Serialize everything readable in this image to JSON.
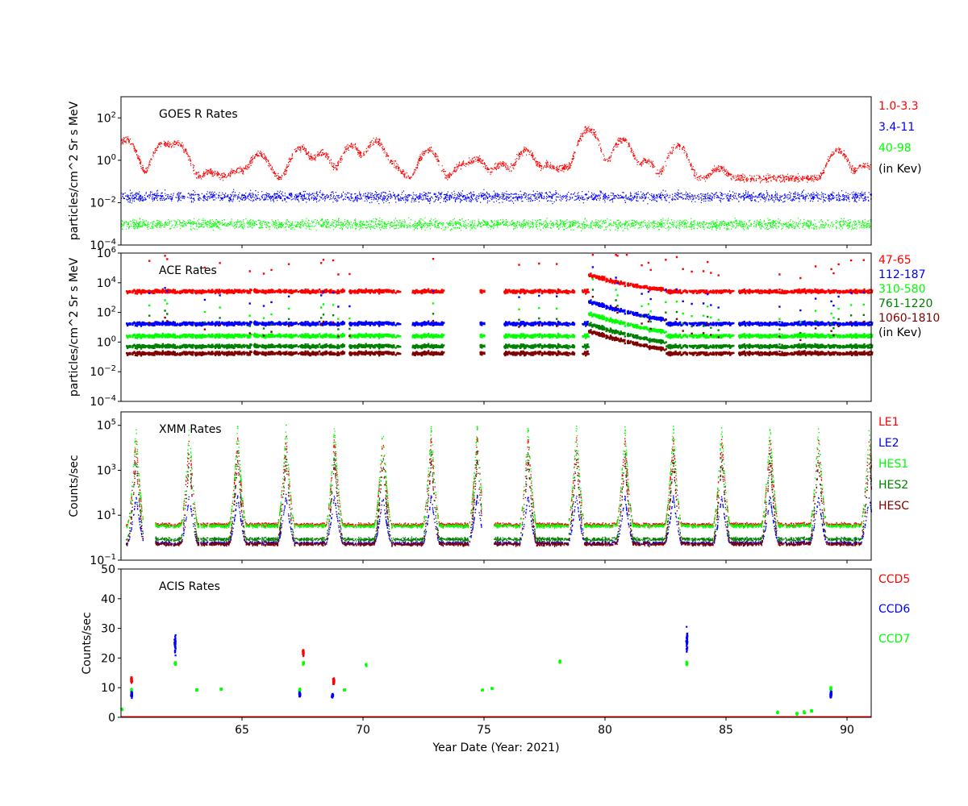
{
  "figure": {
    "xlabel": "Year Date (Year: 2021)",
    "x_range": [
      60.0,
      91.0
    ],
    "x_ticks": [
      65,
      70,
      75,
      80,
      85,
      90
    ]
  },
  "chart_data": [
    {
      "type": "scatter",
      "title": "GOES R Rates",
      "ylabel": "particles/cm^2 Sr s MeV",
      "yscale": "log",
      "ylim_exp": [
        -4,
        3
      ],
      "yticks_exp": [
        -4,
        -2,
        0,
        2
      ],
      "legend": [
        {
          "label": "1.0-3.3",
          "color": "#ff0000"
        },
        {
          "label": "3.4-11",
          "color": "#0000ff"
        },
        {
          "label": "40-98",
          "color": "#00ff00"
        },
        {
          "label": "(in Kev)",
          "color": "#000000"
        }
      ],
      "series": [
        {
          "color": "#ff0000",
          "baseline": 0.15,
          "peaks": [
            [
              60.2,
              10
            ],
            [
              61.7,
              6
            ],
            [
              62.3,
              5
            ],
            [
              62.5,
              1
            ],
            [
              63.7,
              0.15
            ],
            [
              64.8,
              0.2
            ],
            [
              65.7,
              2
            ],
            [
              67.4,
              4
            ],
            [
              68.3,
              2
            ],
            [
              69.5,
              5
            ],
            [
              70.5,
              8
            ],
            [
              71.2,
              0.5
            ],
            [
              72.7,
              3
            ],
            [
              74.1,
              0.5
            ],
            [
              74.7,
              1
            ],
            [
              75.7,
              0.5
            ],
            [
              76.7,
              3
            ],
            [
              77.6,
              0.5
            ],
            [
              78.3,
              0.3
            ],
            [
              79.3,
              30
            ],
            [
              80.7,
              10
            ],
            [
              81.7,
              0.8
            ],
            [
              83.0,
              5
            ],
            [
              84.7,
              0.3
            ],
            [
              89.6,
              3
            ],
            [
              90.7,
              0.5
            ]
          ]
        },
        {
          "color": "#0000ff",
          "baseline": 0.02
        },
        {
          "color": "#00ff00",
          "baseline": 0.001
        }
      ]
    },
    {
      "type": "scatter",
      "title": "ACE Rates",
      "ylabel": "particles/cm^2 Sr s MeV",
      "yscale": "log",
      "ylim_exp": [
        -4,
        6
      ],
      "yticks_exp": [
        -4,
        -2,
        0,
        2,
        4,
        6
      ],
      "legend": [
        {
          "label": "47-65",
          "color": "#ff0000"
        },
        {
          "label": "112-187",
          "color": "#0000ff"
        },
        {
          "label": "310-580",
          "color": "#00ff00"
        },
        {
          "label": "761-1220",
          "color": "#008000"
        },
        {
          "label": "1060-1810",
          "color": "#800000"
        },
        {
          "label": "(in Kev)",
          "color": "#000000"
        }
      ],
      "gaps": [
        [
          69.2,
          69.4
        ],
        [
          71.5,
          72.0
        ],
        [
          73.3,
          74.8
        ],
        [
          75.0,
          75.8
        ],
        [
          78.7,
          79.0
        ],
        [
          85.3,
          85.5
        ]
      ],
      "storm": {
        "start": 79.3,
        "peak_factor": 30
      },
      "series": [
        {
          "color": "#ff0000",
          "baseline": 3000
        },
        {
          "color": "#0000ff",
          "baseline": 20
        },
        {
          "color": "#00ff00",
          "baseline": 3
        },
        {
          "color": "#008000",
          "baseline": 0.6
        },
        {
          "color": "#800000",
          "baseline": 0.2
        }
      ]
    },
    {
      "type": "scatter",
      "title": "XMM Rates",
      "ylabel": "Counts/sec",
      "yscale": "log",
      "ylim_exp": [
        -1,
        5.6
      ],
      "ytick_labels": [
        "10^-1",
        "10^1",
        "10^3",
        "10^5"
      ],
      "yticks_exp": [
        -1,
        1,
        3,
        5
      ],
      "legend": [
        {
          "label": "LE1",
          "color": "#ff0000"
        },
        {
          "label": "LE2",
          "color": "#0000ff"
        },
        {
          "label": "HES1",
          "color": "#00ff00"
        },
        {
          "label": "HES2",
          "color": "#008000"
        },
        {
          "label": "HESC",
          "color": "#800000"
        }
      ],
      "gaps": [
        [
          60.9,
          61.4
        ],
        [
          74.9,
          75.4
        ]
      ],
      "perigees": [
        60.6,
        62.8,
        64.8,
        66.8,
        68.8,
        70.8,
        72.8,
        74.7,
        76.8,
        78.8,
        80.8,
        82.8,
        84.8,
        86.8,
        88.8,
        90.9
      ],
      "series": [
        {
          "color": "#ff0000",
          "baseline": 4,
          "peak": 30000
        },
        {
          "color": "#0000ff",
          "baseline": 0.6,
          "peak": 80
        },
        {
          "color": "#00ff00",
          "baseline": 3.5,
          "peak": 100000
        },
        {
          "color": "#008000",
          "baseline": 0.9,
          "peak": 8000
        },
        {
          "color": "#800000",
          "baseline": 0.55,
          "peak": 3000
        }
      ]
    },
    {
      "type": "scatter",
      "title": "ACIS Rates",
      "ylabel": "Counts/sec",
      "yscale": "linear",
      "ylim": [
        0,
        50
      ],
      "yticks": [
        0,
        10,
        20,
        30,
        40,
        50
      ],
      "legend": [
        {
          "label": "CCD5",
          "color": "#ff0000"
        },
        {
          "label": "CCD6",
          "color": "#0000ff"
        },
        {
          "label": "CCD7",
          "color": "#00ff00"
        }
      ],
      "clusters": [
        {
          "x": 60.0,
          "color": "#00ff00",
          "y": 3,
          "spread": 0.5
        },
        {
          "x": 60.4,
          "color": "#ff0000",
          "y": 13,
          "spread": 1.5
        },
        {
          "x": 60.4,
          "color": "#00ff00",
          "y": 9.5,
          "spread": 0.8
        },
        {
          "x": 60.4,
          "color": "#0000ff",
          "y": 8,
          "spread": 1.5
        },
        {
          "x": 62.2,
          "color": "#0000ff",
          "y": 25,
          "spread": 5
        },
        {
          "x": 62.2,
          "color": "#00ff00",
          "y": 18.5,
          "spread": 0.8
        },
        {
          "x": 63.1,
          "color": "#00ff00",
          "y": 9.5,
          "spread": 0.4
        },
        {
          "x": 64.1,
          "color": "#00ff00",
          "y": 9.8,
          "spread": 0.4
        },
        {
          "x": 67.5,
          "color": "#ff0000",
          "y": 22,
          "spread": 1.5
        },
        {
          "x": 67.5,
          "color": "#00ff00",
          "y": 18.5,
          "spread": 0.6
        },
        {
          "x": 67.35,
          "color": "#00ff00",
          "y": 9.5,
          "spread": 0.8
        },
        {
          "x": 67.35,
          "color": "#0000ff",
          "y": 8,
          "spread": 1.2
        },
        {
          "x": 68.75,
          "color": "#ff0000",
          "y": 12.5,
          "spread": 1.5
        },
        {
          "x": 68.7,
          "color": "#0000ff",
          "y": 7.5,
          "spread": 1.0
        },
        {
          "x": 69.2,
          "color": "#00ff00",
          "y": 9.5,
          "spread": 0.4
        },
        {
          "x": 70.1,
          "color": "#00ff00",
          "y": 18,
          "spread": 0.6
        },
        {
          "x": 74.9,
          "color": "#00ff00",
          "y": 9.5,
          "spread": 0.3
        },
        {
          "x": 75.3,
          "color": "#00ff00",
          "y": 10,
          "spread": 0.4
        },
        {
          "x": 78.1,
          "color": "#00ff00",
          "y": 19,
          "spread": 0.5
        },
        {
          "x": 83.35,
          "color": "#0000ff",
          "y": 26,
          "spread": 5
        },
        {
          "x": 83.35,
          "color": "#00ff00",
          "y": 18.5,
          "spread": 0.8
        },
        {
          "x": 87.1,
          "color": "#00ff00",
          "y": 2,
          "spread": 0.5
        },
        {
          "x": 87.9,
          "color": "#00ff00",
          "y": 1.5,
          "spread": 0.5
        },
        {
          "x": 88.2,
          "color": "#00ff00",
          "y": 2,
          "spread": 0.5
        },
        {
          "x": 88.5,
          "color": "#00ff00",
          "y": 2.5,
          "spread": 0.5
        },
        {
          "x": 89.3,
          "color": "#00ff00",
          "y": 10,
          "spread": 0.8
        },
        {
          "x": 89.3,
          "color": "#0000ff",
          "y": 8,
          "spread": 1.5
        }
      ],
      "zero_line_color": "#ff0000"
    }
  ]
}
